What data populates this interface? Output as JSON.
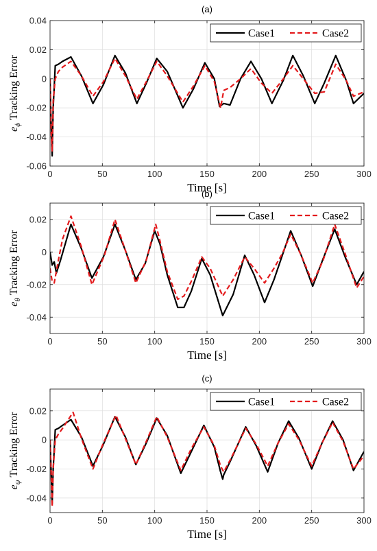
{
  "chart_data": [
    {
      "type": "line",
      "title": "(a)",
      "xlabel": "Time [s]",
      "ylabel": "e_ϕ Tracking Error",
      "ylabel_symbol": "e",
      "ylabel_subscript": "ϕ",
      "ylabel_text": "Tracking Error",
      "xlim": [
        0,
        300
      ],
      "ylim": [
        -0.06,
        0.04
      ],
      "xticks": [
        0,
        50,
        100,
        150,
        200,
        250,
        300
      ],
      "yticks": [
        -0.06,
        -0.04,
        -0.02,
        0,
        0.02,
        0.04
      ],
      "xtick_labels": [
        "0",
        "50",
        "100",
        "150",
        "200",
        "250",
        "300"
      ],
      "ytick_labels": [
        "-0.06",
        "-0.04",
        "-0.02",
        "0",
        "0.02",
        "0.04"
      ],
      "grid": true,
      "legend_position": "top-right",
      "series": [
        {
          "name": "Case1",
          "color": "#000000",
          "style": "solid",
          "x": [
            0,
            1,
            2,
            3,
            5,
            8,
            12,
            20,
            30,
            41,
            51,
            62,
            72,
            83,
            92,
            102,
            112,
            127,
            137,
            148,
            157,
            162,
            166,
            172,
            182,
            192,
            202,
            212,
            223,
            232,
            242,
            253,
            262,
            273,
            283,
            290,
            300
          ],
          "y": [
            0,
            -0.03,
            -0.053,
            -0.02,
            0.009,
            0.01,
            0.012,
            0.015,
            0.002,
            -0.017,
            -0.004,
            0.016,
            0.004,
            -0.017,
            -0.003,
            0.014,
            0.005,
            -0.02,
            -0.007,
            0.011,
            0.0,
            -0.019,
            -0.017,
            -0.018,
            0.0,
            0.012,
            0.0,
            -0.017,
            -0.001,
            0.016,
            0.002,
            -0.017,
            -0.003,
            0.016,
            -0.001,
            -0.017,
            -0.01
          ]
        },
        {
          "name": "Case2",
          "color": "#e31a1c",
          "style": "dashed",
          "x": [
            0,
            1,
            2,
            3,
            5,
            8,
            12,
            20,
            30,
            41,
            51,
            62,
            72,
            83,
            92,
            102,
            112,
            127,
            137,
            148,
            157,
            163,
            166,
            172,
            182,
            192,
            202,
            212,
            223,
            232,
            242,
            253,
            262,
            273,
            283,
            290,
            300
          ],
          "y": [
            0,
            -0.035,
            -0.05,
            -0.015,
            0.0,
            0.005,
            0.008,
            0.012,
            0.002,
            -0.012,
            -0.002,
            0.014,
            0.002,
            -0.014,
            -0.002,
            0.012,
            0.002,
            -0.016,
            -0.005,
            0.009,
            -0.002,
            -0.02,
            -0.008,
            -0.006,
            0.0,
            0.007,
            -0.003,
            -0.01,
            0.0,
            0.009,
            0.0,
            -0.01,
            -0.009,
            0.01,
            -0.001,
            -0.012,
            -0.009
          ]
        }
      ]
    },
    {
      "type": "line",
      "title": "(b)",
      "xlabel": "Time [s]",
      "ylabel": "e_θ Tracking Error",
      "ylabel_symbol": "e",
      "ylabel_subscript": "θ",
      "ylabel_text": "Tracking Error",
      "xlim": [
        0,
        300
      ],
      "ylim": [
        -0.05,
        0.03
      ],
      "xticks": [
        0,
        50,
        100,
        150,
        200,
        250,
        300
      ],
      "yticks": [
        -0.04,
        -0.02,
        0,
        0.02
      ],
      "xtick_labels": [
        "0",
        "50",
        "100",
        "150",
        "200",
        "250",
        "300"
      ],
      "ytick_labels": [
        "-0.04",
        "-0.02",
        "0",
        "0.02"
      ],
      "grid": true,
      "legend_position": "top-right",
      "series": [
        {
          "name": "Case1",
          "color": "#000000",
          "style": "solid",
          "x": [
            0,
            2,
            4,
            6,
            10,
            20,
            30,
            40,
            51,
            62,
            72,
            82,
            91,
            100,
            105,
            112,
            122,
            128,
            135,
            145,
            153,
            165,
            175,
            186,
            195,
            205,
            214,
            222,
            230,
            240,
            251,
            261,
            272,
            282,
            293,
            300
          ],
          "y": [
            0,
            -0.008,
            -0.006,
            -0.013,
            -0.005,
            0.017,
            0.002,
            -0.016,
            -0.003,
            0.017,
            0.001,
            -0.017,
            -0.007,
            0.013,
            0.005,
            -0.014,
            -0.034,
            -0.034,
            -0.024,
            -0.004,
            -0.014,
            -0.039,
            -0.026,
            -0.002,
            -0.014,
            -0.031,
            -0.017,
            -0.002,
            0.013,
            -0.002,
            -0.021,
            -0.004,
            0.014,
            -0.003,
            -0.02,
            -0.012
          ]
        },
        {
          "name": "Case2",
          "color": "#e31a1c",
          "style": "dashed",
          "x": [
            0,
            2,
            4,
            8,
            12,
            20,
            30,
            40,
            52,
            62,
            72,
            82,
            92,
            101,
            105,
            112,
            122,
            128,
            135,
            145,
            153,
            165,
            175,
            186,
            195,
            205,
            214,
            222,
            230,
            240,
            251,
            261,
            272,
            282,
            293,
            300
          ],
          "y": [
            -0.01,
            -0.018,
            -0.019,
            -0.005,
            0.008,
            0.022,
            0.003,
            -0.02,
            -0.002,
            0.02,
            0.001,
            -0.019,
            -0.005,
            0.017,
            0.007,
            -0.012,
            -0.029,
            -0.027,
            -0.018,
            -0.003,
            -0.01,
            -0.027,
            -0.017,
            -0.003,
            -0.01,
            -0.019,
            -0.01,
            -0.001,
            0.011,
            -0.002,
            -0.019,
            -0.005,
            0.017,
            -0.001,
            -0.022,
            -0.015
          ]
        }
      ]
    },
    {
      "type": "line",
      "title": "(c)",
      "xlabel": "Time [s]",
      "ylabel": "e_ψ Tracking Error",
      "ylabel_symbol": "e",
      "ylabel_subscript": "ψ",
      "ylabel_text": "Tracking Error",
      "xlim": [
        0,
        300
      ],
      "ylim": [
        -0.05,
        0.035
      ],
      "xticks": [
        0,
        50,
        100,
        150,
        200,
        250,
        300
      ],
      "yticks": [
        -0.04,
        -0.02,
        0,
        0.02
      ],
      "xtick_labels": [
        "0",
        "50",
        "100",
        "150",
        "200",
        "250",
        "300"
      ],
      "ytick_labels": [
        "-0.04",
        "-0.02",
        "0",
        "0.02"
      ],
      "grid": true,
      "legend_position": "top-right",
      "series": [
        {
          "name": "Case1",
          "color": "#000000",
          "style": "solid",
          "x": [
            0,
            1,
            2,
            3,
            5,
            8,
            12,
            20,
            30,
            41,
            51,
            62,
            72,
            82,
            92,
            102,
            112,
            125,
            135,
            147,
            157,
            163,
            165,
            166,
            172,
            187,
            197,
            208,
            218,
            228,
            238,
            250,
            260,
            270,
            280,
            290,
            300
          ],
          "y": [
            0,
            -0.02,
            -0.044,
            -0.02,
            0.007,
            0.008,
            0.01,
            0.014,
            0.002,
            -0.018,
            -0.003,
            0.016,
            0.002,
            -0.017,
            -0.002,
            0.015,
            0.003,
            -0.023,
            -0.008,
            0.01,
            -0.005,
            -0.022,
            -0.027,
            -0.024,
            -0.015,
            0.009,
            -0.004,
            -0.022,
            -0.002,
            0.013,
            0.001,
            -0.02,
            -0.002,
            0.013,
            0.0,
            -0.021,
            -0.008
          ]
        },
        {
          "name": "Case2",
          "color": "#e31a1c",
          "style": "dashed",
          "x": [
            0,
            1,
            2,
            3,
            5,
            8,
            12,
            22,
            30,
            41,
            51,
            63,
            72,
            82,
            92,
            102,
            112,
            125,
            135,
            147,
            157,
            163,
            166,
            172,
            187,
            197,
            208,
            218,
            228,
            238,
            250,
            260,
            270,
            280,
            290,
            300
          ],
          "y": [
            0,
            -0.02,
            -0.046,
            -0.02,
            0.0,
            0.004,
            0.008,
            0.019,
            0.001,
            -0.02,
            -0.002,
            0.017,
            0.001,
            -0.017,
            -0.001,
            0.016,
            0.002,
            -0.021,
            -0.006,
            0.009,
            -0.004,
            -0.018,
            -0.022,
            -0.014,
            0.008,
            -0.003,
            -0.018,
            -0.002,
            0.011,
            0.0,
            -0.018,
            -0.002,
            0.012,
            -0.001,
            -0.02,
            -0.011
          ]
        }
      ]
    }
  ]
}
